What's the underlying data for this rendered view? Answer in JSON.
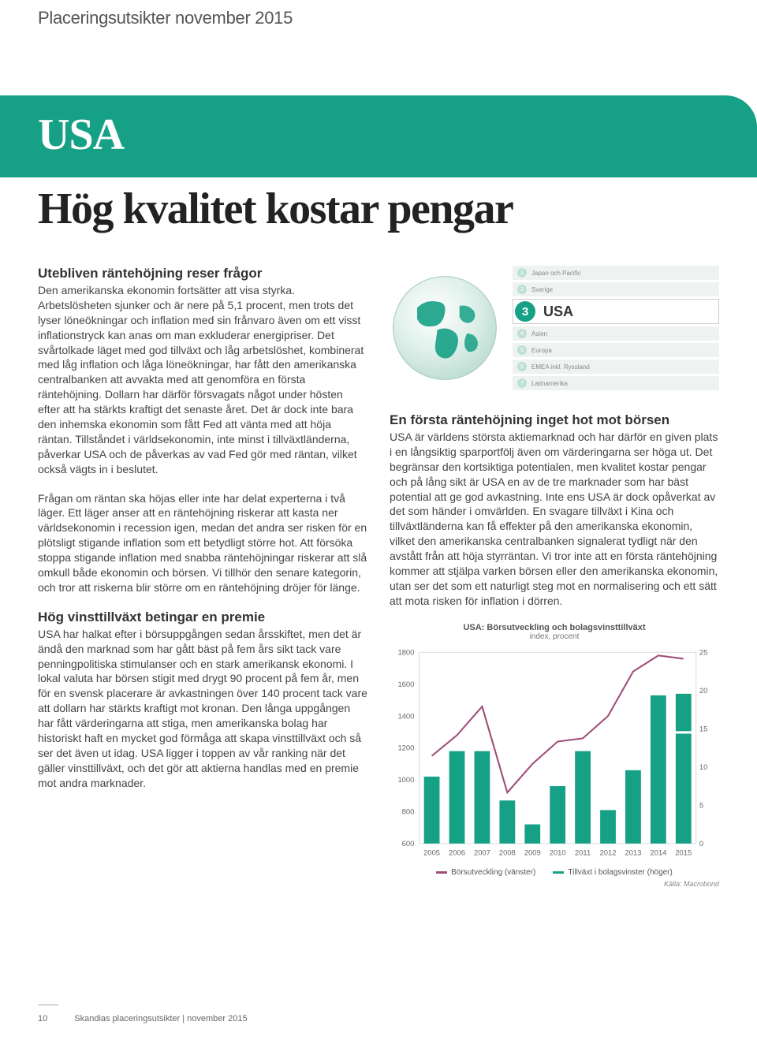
{
  "doc_title": "Placeringsutsikter november 2015",
  "banner": {
    "label": "USA"
  },
  "headline": "Hög kvalitet kostar pengar",
  "left": {
    "h1": "Utebliven räntehöjning reser frågor",
    "p1": "Den amerikanska ekonomin fortsätter att visa styrka. Arbetslösheten sjunker och är nere på 5,1 procent, men trots det lyser löneökningar och inflation med sin frånvaro även om ett visst inflationstryck kan anas om man exkluderar energipriser. Det svårtolkade läget med god tillväxt och låg arbetslöshet, kombinerat med låg inflation och låga löneökningar, har fått den amerikanska centralbanken att avvakta med att genomföra en första räntehöjning. Dollarn har därför försvagats något under hösten efter att ha stärkts kraftigt det senaste året. Det är dock inte bara den inhemska ekonomin som fått Fed att vänta med att höja räntan. Tillståndet i världsekonomin, inte minst i tillväxtländerna, påverkar USA och de påverkas av vad Fed gör med räntan, vilket också vägts in i beslutet.",
    "p2": "Frågan om räntan ska höjas eller inte har delat experterna i två läger. Ett läger anser att en räntehöjning riskerar att kasta ner världsekonomin i recession igen, medan det andra ser risken för en plötsligt stigande inflation som ett betydligt större hot. Att försöka stoppa stigande inflation med snabba räntehöjningar riskerar att slå omkull både ekonomin och börsen. Vi tillhör den senare kategorin, och tror att riskerna blir större om en räntehöjning dröjer för länge.",
    "h2": "Hög vinsttillväxt betingar en premie",
    "p3": "USA har halkat efter i börsuppgången sedan årsskiftet, men det är ändå den marknad som har gått bäst på fem års sikt tack vare penningpolitiska stimulanser och en stark amerikansk ekonomi. I lokal valuta har börsen stigit med drygt 90 procent på fem år, men för en svensk placerare är avkastningen över 140 procent tack vare att dollarn har stärkts kraftigt mot kronan. Den långa uppgången har fått värderingarna att stiga, men amerikanska bolag har historiskt haft en mycket god förmåga att skapa vinsttillväxt och så ser det även ut idag. USA ligger i toppen av vår ranking när det gäller vinsttillväxt, och det gör att aktierna handlas med en premie mot andra marknader."
  },
  "right": {
    "rank": {
      "items": [
        {
          "num": "1",
          "label": "Japan och Pacific"
        },
        {
          "num": "2",
          "label": "Sverige"
        },
        {
          "num": "3",
          "label": "USA",
          "active": true
        },
        {
          "num": "4",
          "label": "Asien"
        },
        {
          "num": "5",
          "label": "Europa"
        },
        {
          "num": "6",
          "label": "EMEA inkl. Ryssland"
        },
        {
          "num": "7",
          "label": "Latinamerika"
        }
      ]
    },
    "h1": "En första räntehöjning inget hot mot börsen",
    "p1": "USA är världens största aktiemarknad och har därför en given plats i en långsiktig sparportfölj även om värderingarna ser höga ut. Det begränsar den kortsiktiga potentialen, men kvalitet kostar pengar och på lång sikt är USA en av de tre marknader som har bäst potential att ge god avkastning. Inte ens USA är dock opåverkat av det som händer i omvärlden. En svagare tillväxt i Kina och tillväxtländerna kan få effekter på den amerikanska ekonomin, vilket den amerikanska centralbanken signalerat tydligt när den avstått från att höja styrräntan. Vi tror inte att en första räntehöjning kommer att stjälpa varken börsen eller den amerikanska ekonomin, utan ser det som ett naturligt steg mot en normalisering och ett sätt att mota risken för inflation i dörren."
  },
  "chart": {
    "title": "USA: Börsutveckling och bolagsvinsttillväxt",
    "subtitle": "index, procent",
    "y_left": {
      "min": 600,
      "max": 1800,
      "step": 200
    },
    "y_right": {
      "min": 0,
      "max": 25,
      "step": 5
    },
    "years": [
      "2005",
      "2006",
      "2007",
      "2008",
      "2009",
      "2010",
      "2011",
      "2012",
      "2013",
      "2014",
      "2015"
    ],
    "bars": [
      1020,
      1180,
      1180,
      870,
      720,
      960,
      1180,
      810,
      1060,
      1530,
      1540
    ],
    "bars_last_partial": {
      "index": 10,
      "value_full": 1400
    },
    "line": [
      1150,
      1280,
      1460,
      920,
      1100,
      1240,
      1260,
      1400,
      1680,
      1780,
      1760
    ],
    "bar_color": "#16a085",
    "line_color": "#a04f7a",
    "grid_color": "#dddddd",
    "axis_text_color": "#666666",
    "legend": {
      "left": "Börsutveckling (vänster)",
      "right": "Tillväxt i bolagsvinster (höger)"
    },
    "source": "Källa: Macrobond"
  },
  "footer": {
    "page_number": "10",
    "doc_line": "Skandias placeringsutsikter | november 2015"
  }
}
